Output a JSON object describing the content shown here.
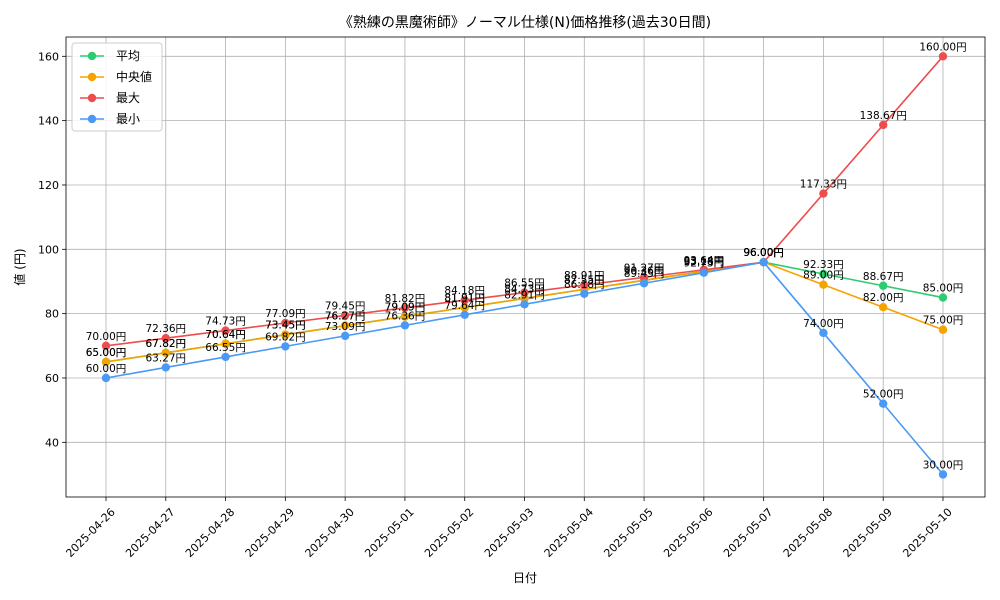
{
  "chart_data": {
    "type": "line",
    "title": "《熟練の黒魔術師》ノーマル仕様(N)価格推移(過去30日間)",
    "xlabel": "日付",
    "ylabel": "値 (円)",
    "ylim": [
      23,
      166
    ],
    "yticks": [
      40,
      60,
      80,
      100,
      120,
      140,
      160
    ],
    "grid": true,
    "legend_position": "top-left",
    "label_suffix": "円",
    "categories": [
      "2025-04-26",
      "2025-04-27",
      "2025-04-28",
      "2025-04-29",
      "2025-04-30",
      "2025-05-01",
      "2025-05-02",
      "2025-05-03",
      "2025-05-04",
      "2025-05-05",
      "2025-05-06",
      "2025-05-07",
      "2025-05-08",
      "2025-05-09",
      "2025-05-10"
    ],
    "series": [
      {
        "name": "平均",
        "color": "#2ecc71",
        "values": [
          65.0,
          67.82,
          70.64,
          73.45,
          76.27,
          79.09,
          81.91,
          84.73,
          87.55,
          90.36,
          93.18,
          96.0,
          92.33,
          88.67,
          85.0
        ]
      },
      {
        "name": "中央値",
        "color": "#f5a300",
        "values": [
          65.0,
          67.82,
          70.64,
          73.45,
          76.27,
          79.09,
          81.91,
          84.73,
          87.55,
          90.36,
          93.18,
          96.0,
          89.0,
          82.0,
          75.0
        ]
      },
      {
        "name": "最大",
        "color": "#ef4d4d",
        "values": [
          70.0,
          72.36,
          74.73,
          77.09,
          79.45,
          81.82,
          84.18,
          86.55,
          88.91,
          91.27,
          93.64,
          96.0,
          117.33,
          138.67,
          160.0
        ]
      },
      {
        "name": "最小",
        "color": "#4a9af5",
        "values": [
          60.0,
          63.27,
          66.55,
          69.82,
          73.09,
          76.36,
          79.64,
          82.91,
          86.18,
          89.45,
          92.73,
          96.0,
          74.0,
          52.0,
          30.0
        ]
      }
    ]
  }
}
